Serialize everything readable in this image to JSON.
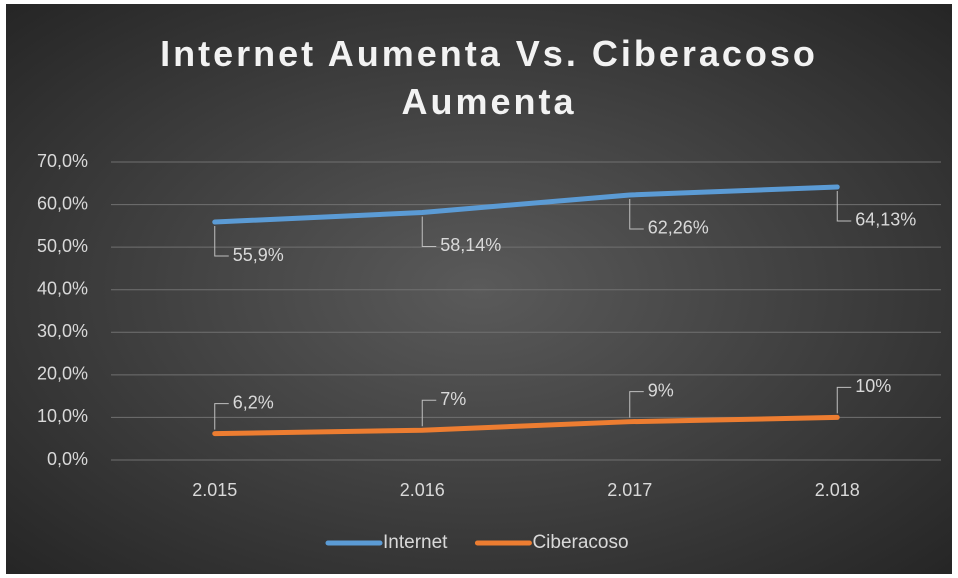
{
  "chart_data": {
    "type": "line",
    "title": "Internet Aumenta Vs. Ciberacoso Aumenta",
    "categories": [
      "2.015",
      "2.016",
      "2.017",
      "2.018"
    ],
    "series": [
      {
        "name": "Internet",
        "color": "#5b9bd5",
        "values": [
          55.9,
          58.14,
          62.26,
          64.13
        ],
        "value_labels": [
          "55,9%",
          "58,14%",
          "62,26%",
          "64,13%"
        ]
      },
      {
        "name": "Ciberacoso",
        "color": "#ed7d31",
        "values": [
          6.2,
          7,
          9,
          10
        ],
        "value_labels": [
          "6,2%",
          "7%",
          "9%",
          "10%"
        ]
      }
    ],
    "ylim": [
      0,
      70
    ],
    "yticks": [
      {
        "value": 0,
        "label": "0,0%"
      },
      {
        "value": 10,
        "label": "10,0%"
      },
      {
        "value": 20,
        "label": "20,0%"
      },
      {
        "value": 30,
        "label": "30,0%"
      },
      {
        "value": 40,
        "label": "40,0%"
      },
      {
        "value": 50,
        "label": "50,0%"
      },
      {
        "value": 60,
        "label": "60,0%"
      },
      {
        "value": 70,
        "label": "70,0%"
      }
    ],
    "grid": true,
    "legend": "bottom"
  }
}
